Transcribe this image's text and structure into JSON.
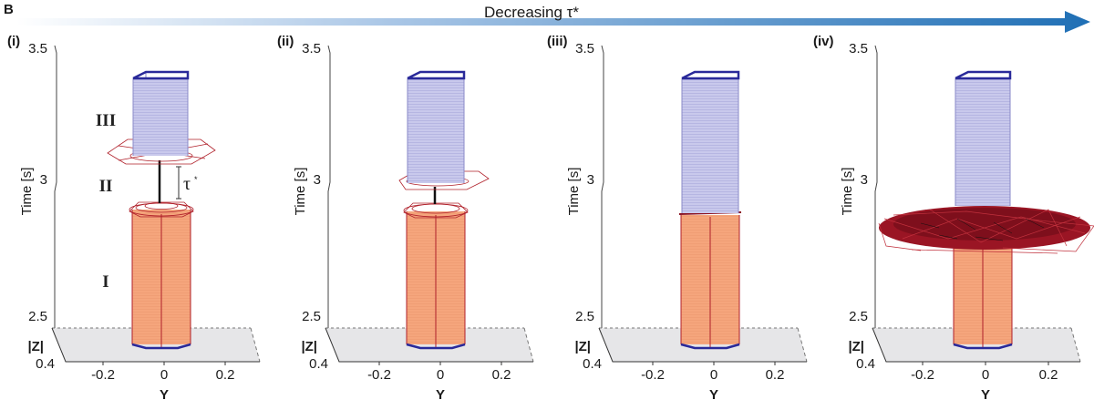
{
  "figure": {
    "letter": "B",
    "arrow_label": "Decreasing τ*",
    "colors": {
      "arrow": "#1f6fb5",
      "orange": "#f4a27a",
      "purple": "#c6c6ea",
      "outline": "#2a2a9a",
      "red": "#b0202a",
      "floor": "#e6e6e8"
    }
  },
  "panels": [
    {
      "label": "(i)",
      "y_tick_top": "3.5",
      "y_tick_mid": "3",
      "y_tick_bottom": "2.5",
      "z_tick": "0.4",
      "z_label": "|Z|",
      "y_axis_label": "Time [s]",
      "x_ticks": [
        "-0.2",
        "0",
        "0.2"
      ],
      "x_label": "Y",
      "phase_labels": [
        "III",
        "II",
        "I"
      ],
      "tau_label": "τ",
      "tau_sup": "*"
    },
    {
      "label": "(ii)",
      "y_tick_top": "3.5",
      "y_tick_mid": "3",
      "y_tick_bottom": "2.5",
      "z_tick": "0.4",
      "z_label": "|Z|",
      "y_axis_label": "Time [s]",
      "x_ticks": [
        "-0.2",
        "0",
        "0.2"
      ],
      "x_label": "Y"
    },
    {
      "label": "(iii)",
      "y_tick_top": "3.5",
      "y_tick_mid": "3",
      "y_tick_bottom": "2.5",
      "z_tick": "0.4",
      "z_label": "|Z|",
      "y_axis_label": "Time [s]",
      "x_ticks": [
        "-0.2",
        "0",
        "0.2"
      ],
      "x_label": "Y"
    },
    {
      "label": "(iv)",
      "y_tick_top": "3.5",
      "y_tick_mid": "3",
      "y_tick_bottom": "2.5",
      "z_tick": "0.4",
      "z_label": "|Z|",
      "y_axis_label": "Time [s]",
      "x_ticks": [
        "-0.2",
        "0",
        "0.2"
      ],
      "x_label": "Y"
    }
  ]
}
